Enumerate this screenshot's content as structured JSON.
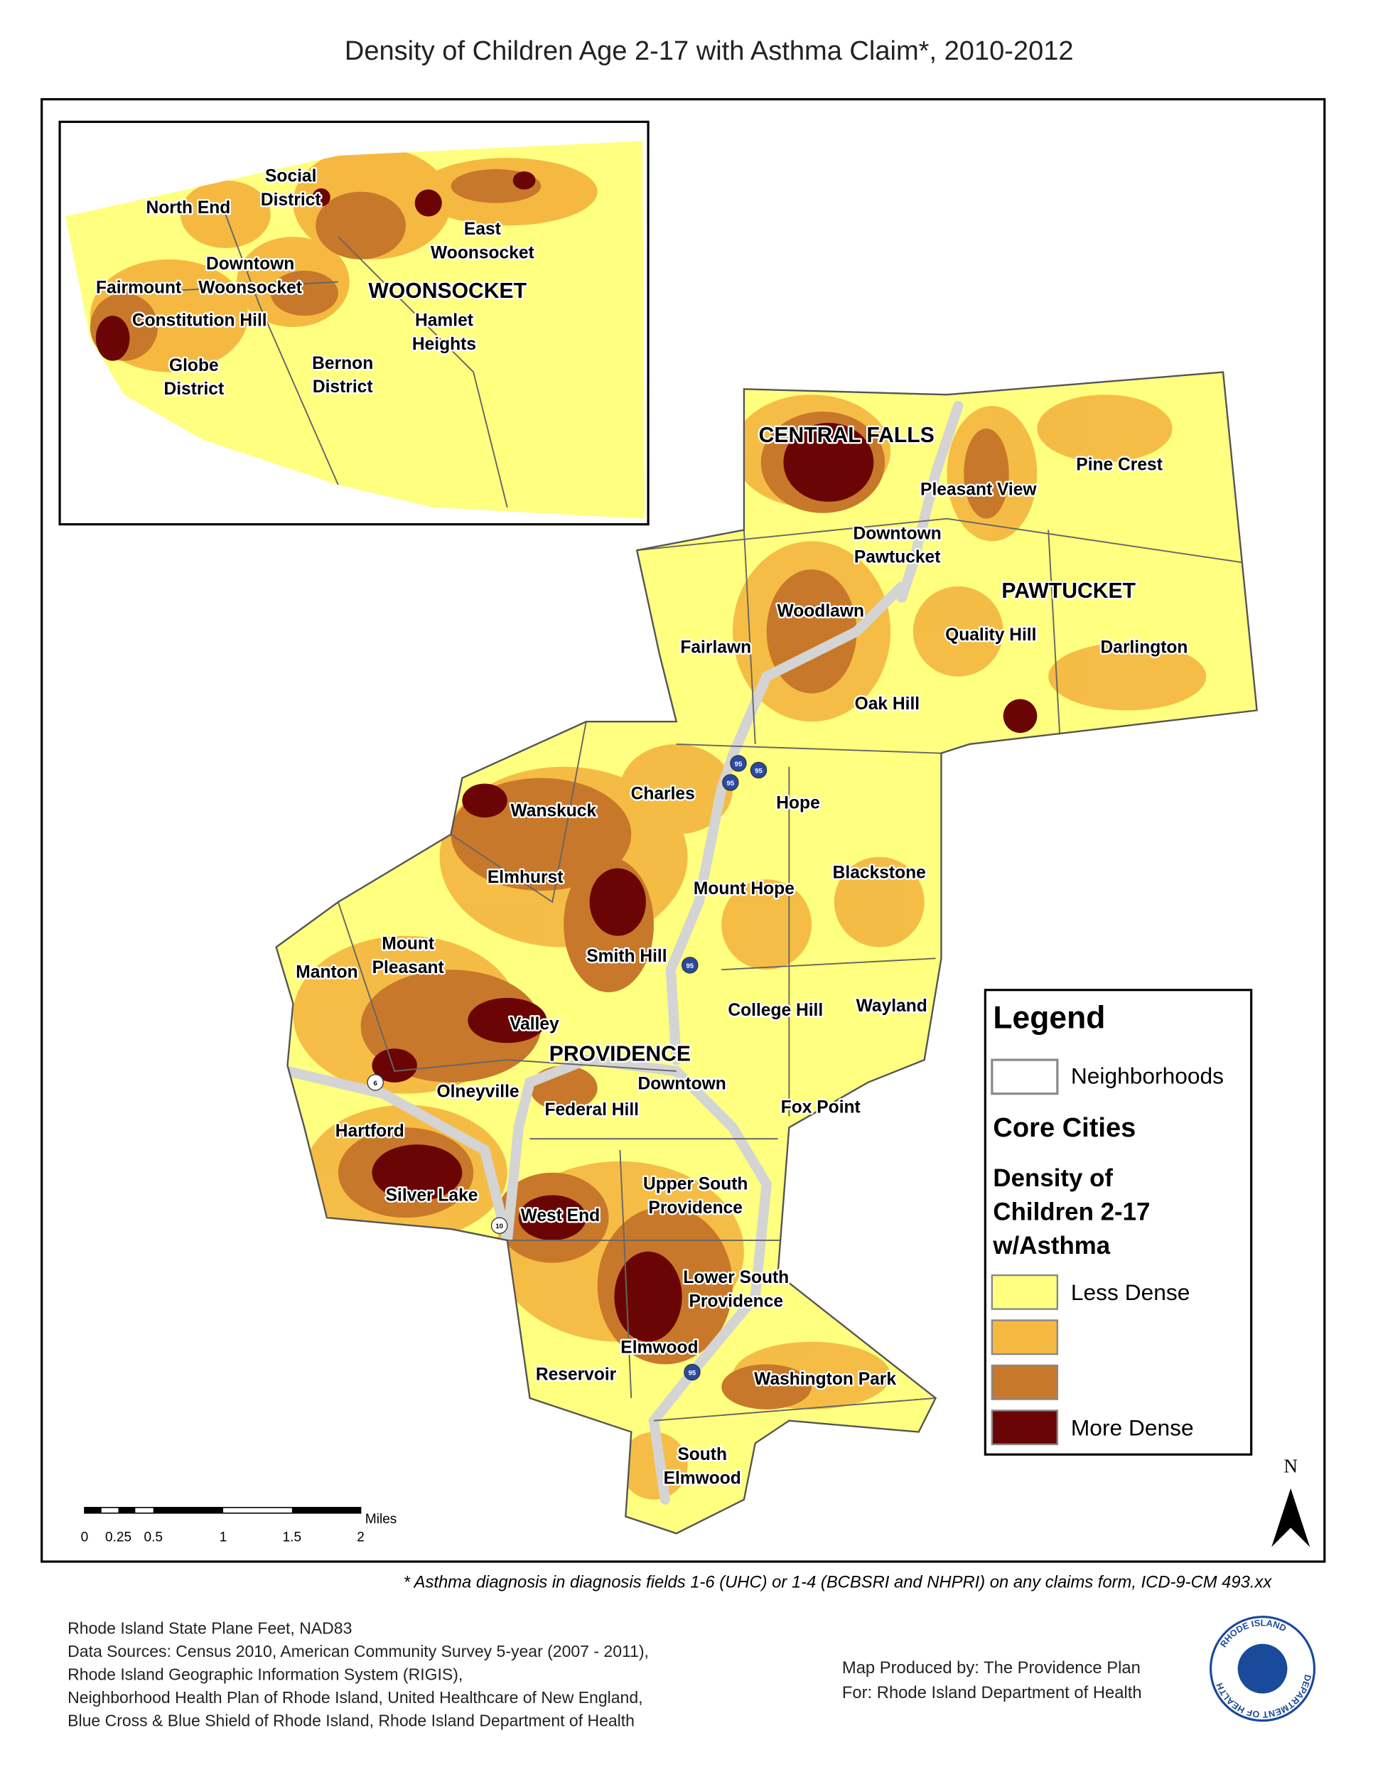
{
  "title": "Density of Children Age 2-17 with Asthma Claim*, 2010-2012",
  "inset_labels": [
    {
      "lines": [
        "North End"
      ]
    },
    {
      "lines": [
        "Social",
        "District"
      ]
    },
    {
      "lines": [
        "East",
        "Woonsocket"
      ]
    },
    {
      "lines": [
        "Downtown",
        "Woonsocket"
      ]
    },
    {
      "lines": [
        "Fairmount"
      ]
    },
    {
      "lines": [
        "Constitution Hill"
      ]
    },
    {
      "lines": [
        "Hamlet",
        "Heights"
      ]
    },
    {
      "lines": [
        "Globe",
        "District"
      ]
    },
    {
      "lines": [
        "Bernon",
        "District"
      ]
    }
  ],
  "cities": [
    "WOONSOCKET",
    "CENTRAL FALLS",
    "PAWTUCKET",
    "PROVIDENCE"
  ],
  "neighborhoods": [
    {
      "lines": [
        "Pine Crest"
      ]
    },
    {
      "lines": [
        "Pleasant View"
      ]
    },
    {
      "lines": [
        "Downtown",
        "Pawtucket"
      ]
    },
    {
      "lines": [
        "Woodlawn"
      ]
    },
    {
      "lines": [
        "Quality Hill"
      ]
    },
    {
      "lines": [
        "Fairlawn"
      ]
    },
    {
      "lines": [
        "Darlington"
      ]
    },
    {
      "lines": [
        "Oak Hill"
      ]
    },
    {
      "lines": [
        "Charles"
      ]
    },
    {
      "lines": [
        "Hope"
      ]
    },
    {
      "lines": [
        "Wanskuck"
      ]
    },
    {
      "lines": [
        "Blackstone"
      ]
    },
    {
      "lines": [
        "Elmhurst"
      ]
    },
    {
      "lines": [
        "Mount Hope"
      ]
    },
    {
      "lines": [
        "Mount",
        "Pleasant"
      ]
    },
    {
      "lines": [
        "Smith Hill"
      ]
    },
    {
      "lines": [
        "Manton"
      ]
    },
    {
      "lines": [
        "College Hill"
      ]
    },
    {
      "lines": [
        "Wayland"
      ]
    },
    {
      "lines": [
        "Valley"
      ]
    },
    {
      "lines": [
        "Olneyville"
      ]
    },
    {
      "lines": [
        "Downtown"
      ]
    },
    {
      "lines": [
        "Federal Hill"
      ]
    },
    {
      "lines": [
        "Fox Point"
      ]
    },
    {
      "lines": [
        "Hartford"
      ]
    },
    {
      "lines": [
        "Upper South",
        "Providence"
      ]
    },
    {
      "lines": [
        "Silver Lake"
      ]
    },
    {
      "lines": [
        "West End"
      ]
    },
    {
      "lines": [
        "Lower South",
        "Providence"
      ]
    },
    {
      "lines": [
        "Elmwood"
      ]
    },
    {
      "lines": [
        "Reservoir"
      ]
    },
    {
      "lines": [
        "Washington Park"
      ]
    },
    {
      "lines": [
        "South",
        "Elmwood"
      ]
    }
  ],
  "shields": [
    "95",
    "95",
    "95",
    "95",
    "95",
    "6",
    "10"
  ],
  "legend": {
    "title": "Legend",
    "boundary": "Neighborhoods",
    "core": "Core Cities",
    "heading": [
      "Density of",
      "Children 2-17",
      "w/Asthma"
    ],
    "items": [
      {
        "label": "Less Dense",
        "color": "#ffff80"
      },
      {
        "label": null,
        "color": "#f5b942"
      },
      {
        "label": null,
        "color": "#c8782a"
      },
      {
        "label": "More Dense",
        "color": "#6b0505"
      }
    ]
  },
  "scale": {
    "unit": "Miles",
    "labels": [
      "0",
      "0.25",
      "0.5",
      "1",
      "1.5",
      "2"
    ]
  },
  "north": "N",
  "footnote": "* Asthma diagnosis in diagnosis fields 1-6 (UHC) or 1-4 (BCBSRI and NHPRI) on any claims form, ICD-9-CM 493.xx",
  "sources": [
    "Rhode Island State Plane Feet, NAD83",
    "Data Sources: Census 2010, American Community  Survey 5-year (2007 - 2011),",
    "Rhode Island Geographic Information System (RIGIS),",
    "Neighborhood Health Plan of Rhode Island, United Healthcare of New England,",
    "Blue Cross & Blue Shield of Rhode Island, Rhode Island Department of Health"
  ],
  "credits": [
    "Map Produced by: The Providence Plan",
    "For: Rhode Island Department of Health"
  ],
  "logo": [
    "RHODE ISLAND",
    "DEPARTMENT OF HEALTH"
  ]
}
